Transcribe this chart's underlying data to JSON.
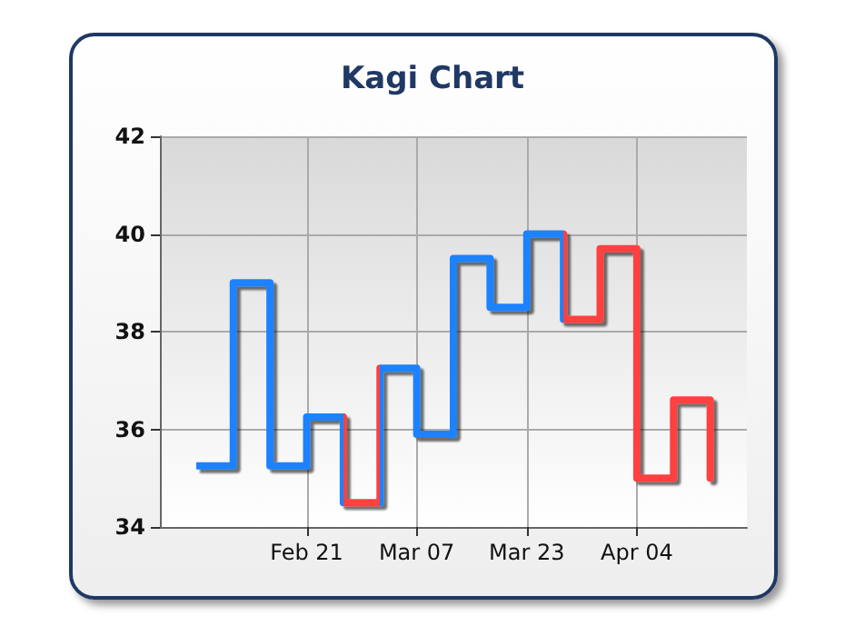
{
  "chart_data": {
    "type": "step",
    "title": "Kagi Chart",
    "categories": [
      null,
      null,
      null,
      null,
      "Feb 21",
      null,
      null,
      "Mar 07",
      null,
      null,
      "Mar 23",
      null,
      null,
      "Apr 04",
      null,
      null,
      null
    ],
    "ylim": [
      34,
      42
    ],
    "yticks": [
      34,
      36,
      38,
      40,
      42
    ],
    "grid": true,
    "marker": "none",
    "line_style": "solid",
    "values": [
      null,
      35.25,
      39,
      35.25,
      36.25,
      34.5,
      37.25,
      35.9,
      39.5,
      38.5,
      40,
      38.25,
      39.7,
      35,
      36.6,
      35,
      null
    ],
    "colors": [
      null,
      "#1e82ff",
      "#1e82ff",
      "#1e82ff",
      "#1e82ff",
      "#ff4040",
      "#1e82ff",
      "#1e82ff",
      "#1e82ff",
      "#1e82ff",
      "#1e82ff",
      "#ff4040",
      "#ff4040",
      "#ff4040",
      "#ff4040",
      "#ff4040",
      null
    ]
  }
}
